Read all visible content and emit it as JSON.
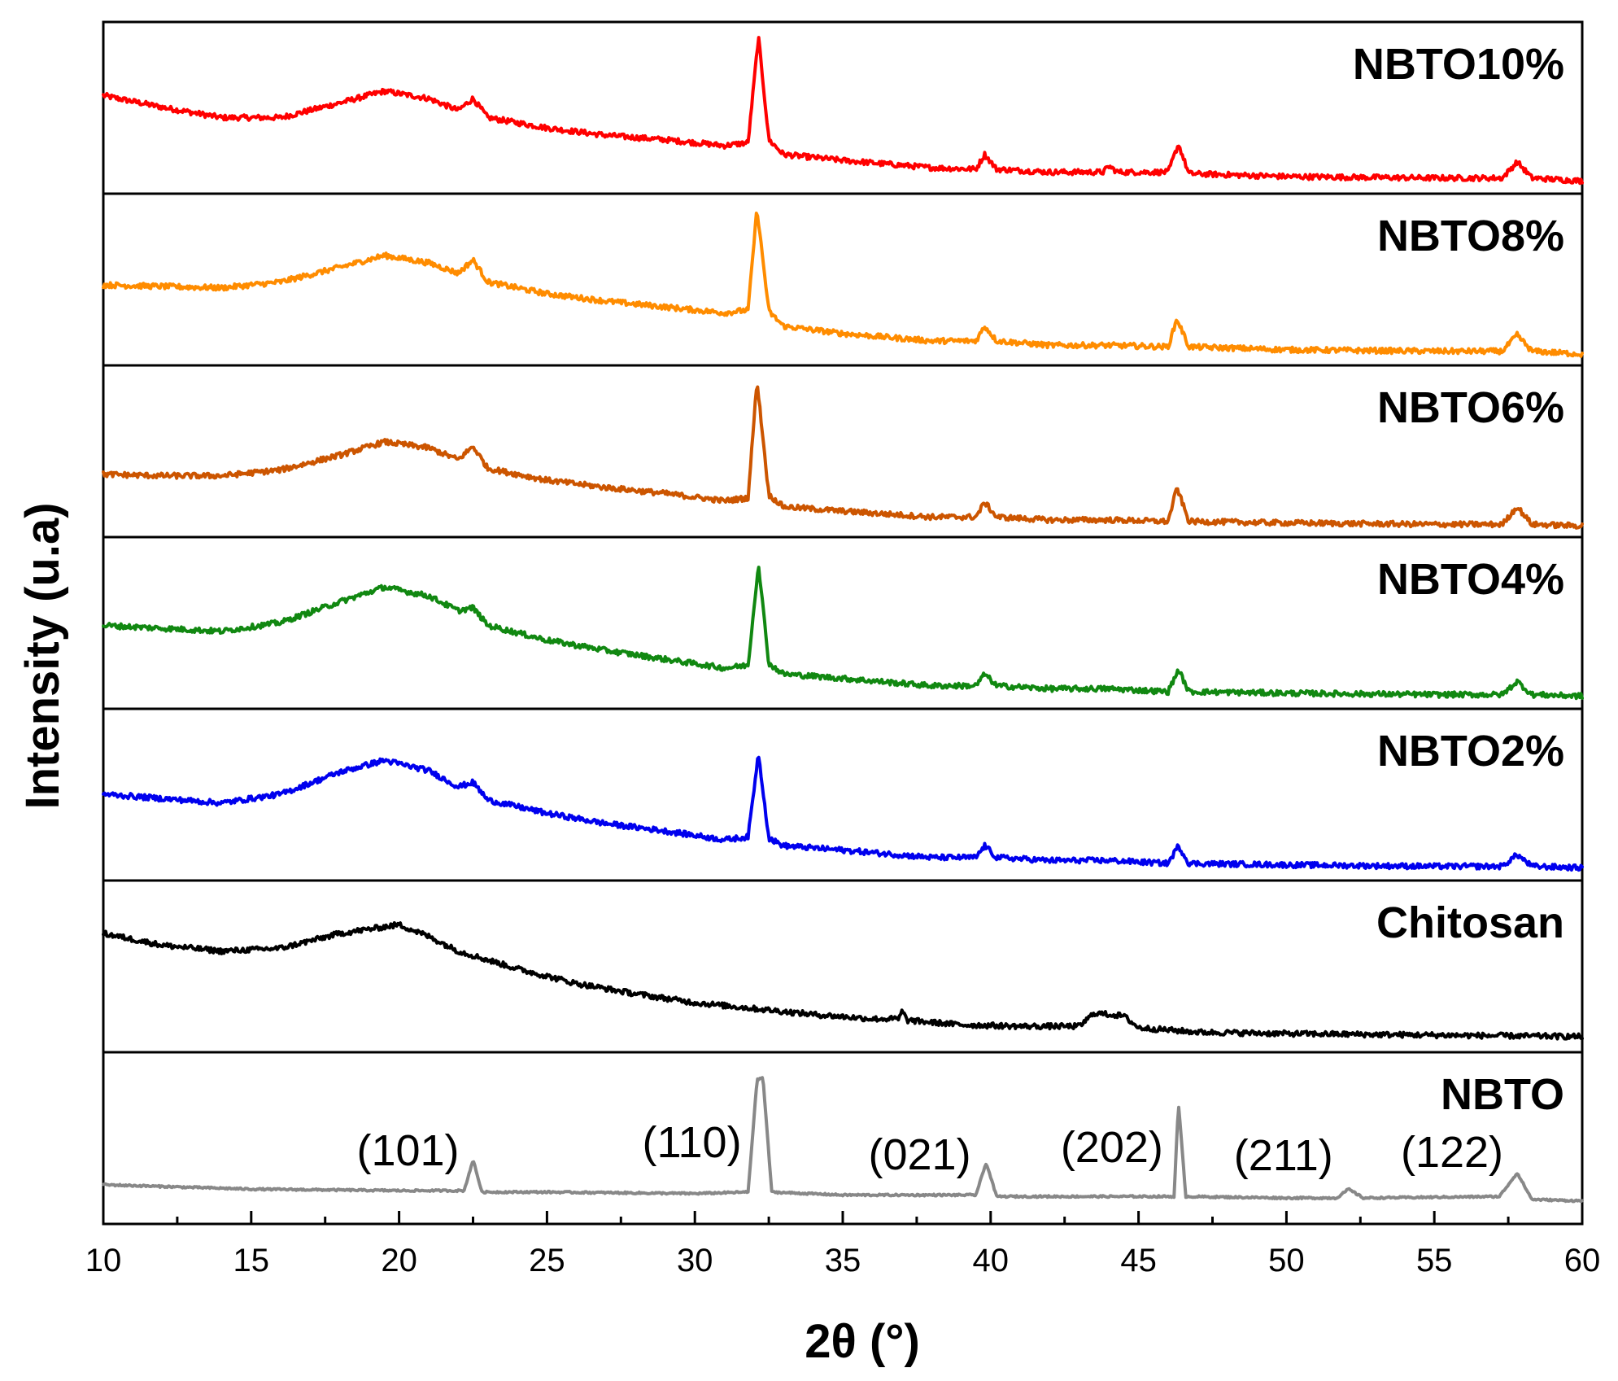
{
  "chart_data": {
    "type": "line",
    "title": "",
    "xlabel": "2θ (°)",
    "ylabel": "Intensity (u.a)",
    "xlim": [
      10,
      60
    ],
    "xticks": [
      "10",
      "15",
      "20",
      "25",
      "30",
      "35",
      "40",
      "45",
      "50",
      "55",
      "60"
    ],
    "layout": "stacked panels, top to bottom",
    "series": [
      {
        "name": "NBTO10%",
        "color": "#ff0000",
        "points": [
          [
            10,
            0.6
          ],
          [
            12,
            0.52
          ],
          [
            14,
            0.45
          ],
          [
            16,
            0.45
          ],
          [
            18,
            0.55
          ],
          [
            19.5,
            0.63
          ],
          [
            21,
            0.58
          ],
          [
            22,
            0.5
          ],
          [
            22.5,
            0.58
          ],
          [
            23,
            0.45
          ],
          [
            25,
            0.38
          ],
          [
            27,
            0.33
          ],
          [
            29,
            0.3
          ],
          [
            31,
            0.26
          ],
          [
            31.8,
            0.28
          ],
          [
            32.15,
            1.0
          ],
          [
            32.5,
            0.3
          ],
          [
            33,
            0.2
          ],
          [
            35,
            0.16
          ],
          [
            38,
            0.11
          ],
          [
            39.5,
            0.1
          ],
          [
            39.8,
            0.2
          ],
          [
            40.2,
            0.1
          ],
          [
            42,
            0.08
          ],
          [
            43.8,
            0.08
          ],
          [
            44,
            0.12
          ],
          [
            44.3,
            0.08
          ],
          [
            46,
            0.08
          ],
          [
            46.35,
            0.27
          ],
          [
            46.7,
            0.07
          ],
          [
            50,
            0.05
          ],
          [
            55,
            0.04
          ],
          [
            57.3,
            0.04
          ],
          [
            57.8,
            0.15
          ],
          [
            58.3,
            0.04
          ],
          [
            60,
            0.02
          ]
        ]
      },
      {
        "name": "NBTO8%",
        "color": "#ff8c00",
        "points": [
          [
            10,
            0.48
          ],
          [
            12,
            0.47
          ],
          [
            14,
            0.46
          ],
          [
            16,
            0.5
          ],
          [
            18,
            0.6
          ],
          [
            19.5,
            0.68
          ],
          [
            21,
            0.63
          ],
          [
            22,
            0.56
          ],
          [
            22.5,
            0.65
          ],
          [
            23,
            0.5
          ],
          [
            25,
            0.42
          ],
          [
            27,
            0.37
          ],
          [
            29,
            0.33
          ],
          [
            31,
            0.29
          ],
          [
            31.8,
            0.31
          ],
          [
            32.1,
            1.0
          ],
          [
            32.5,
            0.3
          ],
          [
            33,
            0.2
          ],
          [
            35,
            0.15
          ],
          [
            38,
            0.1
          ],
          [
            39.5,
            0.1
          ],
          [
            39.8,
            0.2
          ],
          [
            40.2,
            0.1
          ],
          [
            42,
            0.07
          ],
          [
            44,
            0.07
          ],
          [
            46,
            0.06
          ],
          [
            46.3,
            0.25
          ],
          [
            46.7,
            0.06
          ],
          [
            50,
            0.04
          ],
          [
            55,
            0.03
          ],
          [
            57.3,
            0.03
          ],
          [
            57.8,
            0.14
          ],
          [
            58.3,
            0.03
          ],
          [
            60,
            0.01
          ]
        ]
      },
      {
        "name": "NBTO6%",
        "color": "#cc5500",
        "points": [
          [
            10,
            0.36
          ],
          [
            12,
            0.35
          ],
          [
            14,
            0.35
          ],
          [
            16,
            0.39
          ],
          [
            18,
            0.49
          ],
          [
            19.5,
            0.58
          ],
          [
            21,
            0.54
          ],
          [
            22,
            0.46
          ],
          [
            22.5,
            0.55
          ],
          [
            23,
            0.4
          ],
          [
            25,
            0.32
          ],
          [
            27,
            0.27
          ],
          [
            29,
            0.23
          ],
          [
            31,
            0.18
          ],
          [
            31.8,
            0.2
          ],
          [
            32.1,
            1.0
          ],
          [
            32.5,
            0.22
          ],
          [
            33,
            0.14
          ],
          [
            35,
            0.11
          ],
          [
            38,
            0.07
          ],
          [
            39.5,
            0.07
          ],
          [
            39.8,
            0.17
          ],
          [
            40.2,
            0.07
          ],
          [
            42,
            0.05
          ],
          [
            44,
            0.05
          ],
          [
            46,
            0.04
          ],
          [
            46.3,
            0.27
          ],
          [
            46.7,
            0.04
          ],
          [
            50,
            0.03
          ],
          [
            55,
            0.02
          ],
          [
            57.3,
            0.02
          ],
          [
            57.8,
            0.14
          ],
          [
            58.3,
            0.02
          ],
          [
            60,
            0.01
          ]
        ]
      },
      {
        "name": "NBTO4%",
        "color": "#118811",
        "points": [
          [
            10,
            0.5
          ],
          [
            12,
            0.48
          ],
          [
            14,
            0.46
          ],
          [
            16,
            0.52
          ],
          [
            18,
            0.66
          ],
          [
            19.5,
            0.76
          ],
          [
            21,
            0.7
          ],
          [
            22,
            0.6
          ],
          [
            22.5,
            0.62
          ],
          [
            23,
            0.5
          ],
          [
            25,
            0.4
          ],
          [
            27,
            0.33
          ],
          [
            29,
            0.27
          ],
          [
            31,
            0.21
          ],
          [
            31.8,
            0.23
          ],
          [
            32.15,
            0.92
          ],
          [
            32.5,
            0.24
          ],
          [
            33,
            0.17
          ],
          [
            35,
            0.14
          ],
          [
            38,
            0.09
          ],
          [
            39.5,
            0.09
          ],
          [
            39.8,
            0.17
          ],
          [
            40.2,
            0.09
          ],
          [
            42,
            0.07
          ],
          [
            44,
            0.07
          ],
          [
            46,
            0.05
          ],
          [
            46.35,
            0.2
          ],
          [
            46.7,
            0.05
          ],
          [
            50,
            0.04
          ],
          [
            55,
            0.03
          ],
          [
            57.3,
            0.03
          ],
          [
            57.8,
            0.12
          ],
          [
            58.3,
            0.03
          ],
          [
            60,
            0.02
          ]
        ]
      },
      {
        "name": "NBTO2%",
        "color": "#0000ee",
        "points": [
          [
            10,
            0.52
          ],
          [
            12,
            0.49
          ],
          [
            14,
            0.46
          ],
          [
            16,
            0.52
          ],
          [
            18,
            0.67
          ],
          [
            19.5,
            0.75
          ],
          [
            21,
            0.68
          ],
          [
            22,
            0.57
          ],
          [
            22.5,
            0.6
          ],
          [
            23,
            0.48
          ],
          [
            25,
            0.39
          ],
          [
            27,
            0.32
          ],
          [
            29,
            0.27
          ],
          [
            31,
            0.21
          ],
          [
            31.8,
            0.23
          ],
          [
            32.15,
            0.8
          ],
          [
            32.5,
            0.22
          ],
          [
            33,
            0.17
          ],
          [
            35,
            0.14
          ],
          [
            38,
            0.09
          ],
          [
            39.5,
            0.09
          ],
          [
            39.8,
            0.17
          ],
          [
            40.2,
            0.09
          ],
          [
            42,
            0.07
          ],
          [
            44,
            0.07
          ],
          [
            46,
            0.05
          ],
          [
            46.35,
            0.17
          ],
          [
            46.7,
            0.05
          ],
          [
            50,
            0.04
          ],
          [
            55,
            0.03
          ],
          [
            57.3,
            0.03
          ],
          [
            57.8,
            0.11
          ],
          [
            58.3,
            0.03
          ],
          [
            60,
            0.02
          ]
        ]
      },
      {
        "name": "Chitosan",
        "color": "#000000",
        "points": [
          [
            10,
            0.74
          ],
          [
            12,
            0.66
          ],
          [
            14,
            0.62
          ],
          [
            16,
            0.64
          ],
          [
            18,
            0.74
          ],
          [
            20,
            0.8
          ],
          [
            21,
            0.72
          ],
          [
            22,
            0.62
          ],
          [
            24,
            0.5
          ],
          [
            26,
            0.4
          ],
          [
            28,
            0.33
          ],
          [
            30,
            0.27
          ],
          [
            32,
            0.23
          ],
          [
            34,
            0.19
          ],
          [
            36,
            0.16
          ],
          [
            36.9,
            0.16
          ],
          [
            37,
            0.21
          ],
          [
            37.2,
            0.15
          ],
          [
            39,
            0.12
          ],
          [
            41,
            0.11
          ],
          [
            43,
            0.11
          ],
          [
            43.5,
            0.2
          ],
          [
            44.5,
            0.18
          ],
          [
            45,
            0.1
          ],
          [
            47,
            0.07
          ],
          [
            50,
            0.06
          ],
          [
            55,
            0.05
          ],
          [
            60,
            0.04
          ]
        ]
      },
      {
        "name": "NBTO",
        "color": "#888888",
        "points": [
          [
            10,
            0.2
          ],
          [
            15,
            0.17
          ],
          [
            20,
            0.16
          ],
          [
            22.2,
            0.16
          ],
          [
            22.5,
            0.37
          ],
          [
            22.8,
            0.15
          ],
          [
            25,
            0.15
          ],
          [
            30,
            0.14
          ],
          [
            31.8,
            0.15
          ],
          [
            32.1,
            0.91
          ],
          [
            32.3,
            0.93
          ],
          [
            32.6,
            0.15
          ],
          [
            35,
            0.13
          ],
          [
            39.5,
            0.13
          ],
          [
            39.85,
            0.35
          ],
          [
            40.2,
            0.12
          ],
          [
            45,
            0.12
          ],
          [
            46.2,
            0.12
          ],
          [
            46.35,
            0.75
          ],
          [
            46.6,
            0.12
          ],
          [
            50,
            0.11
          ],
          [
            51.7,
            0.11
          ],
          [
            52.1,
            0.17
          ],
          [
            52.6,
            0.11
          ],
          [
            57.2,
            0.12
          ],
          [
            57.8,
            0.28
          ],
          [
            58.3,
            0.1
          ],
          [
            60,
            0.09
          ]
        ]
      }
    ],
    "annotations": [
      {
        "text": "(101)",
        "x": 22.5
      },
      {
        "text": "(110)",
        "x": 32.1
      },
      {
        "text": "(021)",
        "x": 39.8
      },
      {
        "text": "(202)",
        "x": 46.3
      },
      {
        "text": "(211)",
        "x": 52.1
      },
      {
        "text": "(122)",
        "x": 57.8
      }
    ]
  }
}
